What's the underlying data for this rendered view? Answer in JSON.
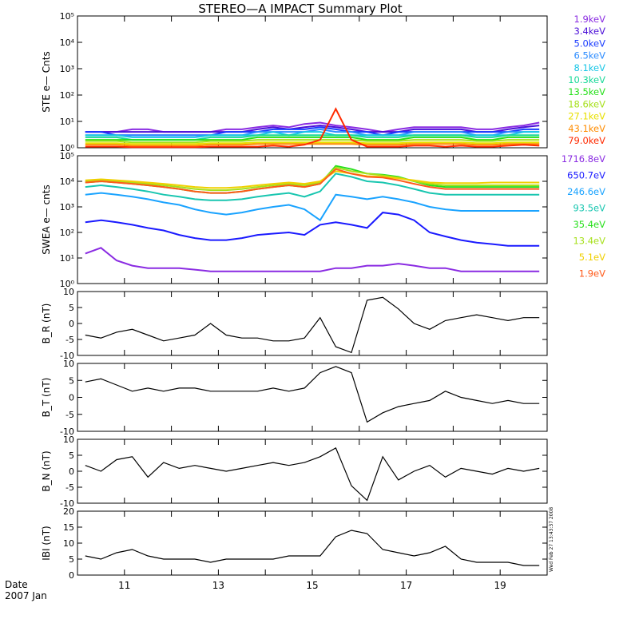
{
  "title": "STEREO—A IMPACT Summary Plot",
  "footer": {
    "date_label": "Date",
    "date_value": "2007 Jan"
  },
  "timestamp": "Wed Feb 27 13:43:37 2008",
  "chart_data": [
    {
      "id": "ste",
      "type": "line",
      "ylabel": "STE e— Cnts",
      "yscale": "log",
      "ylim": [
        1,
        100000
      ],
      "yticks": [
        "10⁰",
        "10¹",
        "10²",
        "10³",
        "10⁴",
        "10⁵"
      ],
      "xlim": [
        10,
        20
      ],
      "x_ticks": [
        "11",
        "13",
        "15",
        "17",
        "19"
      ],
      "series": [
        {
          "name": "1.9keV",
          "color": "#8a2be2",
          "values": [
            4,
            4,
            4,
            5,
            5,
            4,
            4,
            4,
            4,
            5,
            5,
            6,
            7,
            6,
            8,
            9,
            7,
            6,
            5,
            4,
            5,
            6,
            6,
            6,
            6,
            5,
            5,
            6,
            7,
            9
          ]
        },
        {
          "name": "3.4keV",
          "color": "#4b0fd8",
          "values": [
            4,
            4,
            4,
            4,
            4,
            4,
            4,
            4,
            4,
            4,
            4,
            5,
            6,
            5,
            6,
            7,
            6,
            5,
            4,
            4,
            4,
            5,
            5,
            5,
            5,
            4,
            4,
            5,
            6,
            7
          ]
        },
        {
          "name": "5.0keV",
          "color": "#1a3cff",
          "values": [
            4,
            4,
            3,
            3,
            3,
            3,
            3,
            3,
            3,
            4,
            4,
            4,
            5,
            5,
            5,
            6,
            5,
            4,
            4,
            3,
            4,
            4,
            4,
            4,
            4,
            4,
            4,
            4,
            5,
            5
          ]
        },
        {
          "name": "6.5keV",
          "color": "#2c8cff",
          "values": [
            3,
            3,
            3,
            3,
            3,
            3,
            3,
            3,
            3,
            3,
            3,
            4,
            4,
            4,
            4,
            5,
            4,
            4,
            3,
            3,
            3,
            4,
            4,
            4,
            4,
            3,
            3,
            4,
            4,
            4
          ]
        },
        {
          "name": "8.1keV",
          "color": "#19c6e6",
          "values": [
            3,
            3,
            3,
            2.5,
            2.5,
            2.5,
            2.5,
            2.5,
            3,
            3,
            3,
            3,
            4,
            3,
            4,
            4,
            3,
            3,
            3,
            3,
            3,
            3,
            3,
            3,
            3,
            3,
            3,
            3,
            4,
            4
          ]
        },
        {
          "name": "10.3keV",
          "color": "#19d999",
          "values": [
            2.5,
            2.5,
            2.5,
            2,
            2,
            2,
            2,
            2,
            2.5,
            2.5,
            2.5,
            3,
            3,
            3,
            3,
            3,
            3,
            3,
            2.5,
            2.5,
            2.5,
            3,
            3,
            3,
            3,
            2.5,
            2.5,
            3,
            3,
            3
          ]
        },
        {
          "name": "13.5keV",
          "color": "#26e01a",
          "values": [
            2,
            2,
            2,
            2,
            2,
            2,
            2,
            2,
            2,
            2,
            2,
            2.5,
            2.5,
            2.5,
            2.5,
            2.5,
            2.5,
            2.5,
            2,
            2,
            2,
            2.5,
            2.5,
            2.5,
            2.5,
            2,
            2,
            2.5,
            2.5,
            2.5
          ]
        },
        {
          "name": "18.6keV",
          "color": "#a6e01a",
          "values": [
            1.8,
            1.8,
            1.8,
            1.6,
            1.6,
            1.6,
            1.6,
            1.6,
            1.8,
            1.8,
            1.8,
            2,
            2,
            2,
            2,
            2,
            2,
            2,
            1.8,
            1.8,
            1.8,
            2,
            2,
            2,
            2,
            1.8,
            1.8,
            2,
            2,
            2
          ]
        },
        {
          "name": "27.1keV",
          "color": "#e8e000",
          "values": [
            1.5,
            1.5,
            1.5,
            1.4,
            1.4,
            1.4,
            1.4,
            1.4,
            1.5,
            1.5,
            1.5,
            1.6,
            1.6,
            1.6,
            1.6,
            1.6,
            1.6,
            1.6,
            1.5,
            1.5,
            1.5,
            1.6,
            1.6,
            1.6,
            1.6,
            1.5,
            1.5,
            1.6,
            1.6,
            1.6
          ]
        },
        {
          "name": "43.1keV",
          "color": "#ff8c00",
          "values": [
            1.3,
            1.3,
            1.3,
            1.2,
            1.2,
            1.2,
            1.2,
            1.2,
            1.3,
            1.3,
            1.3,
            1.4,
            1.4,
            1.4,
            1.4,
            1.4,
            1.4,
            1.4,
            1.3,
            1.3,
            1.3,
            1.4,
            1.4,
            1.4,
            1.4,
            1.3,
            1.3,
            1.4,
            1.4,
            1.4
          ]
        },
        {
          "name": "79.0keV",
          "color": "#ff2a00",
          "values": [
            1.1,
            1.1,
            1.1,
            1.05,
            1.05,
            1.05,
            1.05,
            1.05,
            1.1,
            1.1,
            1.1,
            1.1,
            1.2,
            1.1,
            1.3,
            2,
            30,
            2,
            1.1,
            1.1,
            1.1,
            1.2,
            1.2,
            1.1,
            1.2,
            1.1,
            1.1,
            1.2,
            1.3,
            1.2
          ]
        }
      ]
    },
    {
      "id": "swea",
      "type": "line",
      "ylabel": "SWEA e— cnts",
      "yscale": "log",
      "ylim": [
        1,
        100000
      ],
      "yticks": [
        "10⁰",
        "10¹",
        "10²",
        "10³",
        "10⁴",
        "10⁵"
      ],
      "xlim": [
        10,
        20
      ],
      "x_ticks": [
        "11",
        "13",
        "15",
        "17",
        "19"
      ],
      "series": [
        {
          "name": "1716.8eV",
          "color": "#8a2be2",
          "values": [
            15,
            25,
            8,
            5,
            4,
            4,
            4,
            3.5,
            3,
            3,
            3,
            3,
            3,
            3,
            3,
            3,
            4,
            4,
            5,
            5,
            6,
            5,
            4,
            4,
            3,
            3,
            3,
            3,
            3,
            3
          ]
        },
        {
          "name": "650.7eV",
          "color": "#1a1aff",
          "values": [
            250,
            300,
            250,
            200,
            150,
            120,
            80,
            60,
            50,
            50,
            60,
            80,
            90,
            100,
            80,
            200,
            250,
            200,
            150,
            600,
            500,
            300,
            100,
            70,
            50,
            40,
            35,
            30,
            30,
            30
          ]
        },
        {
          "name": "246.6eV",
          "color": "#1aa3ff",
          "values": [
            3000,
            3500,
            3000,
            2500,
            2000,
            1500,
            1200,
            800,
            600,
            500,
            600,
            800,
            1000,
            1200,
            800,
            300,
            3000,
            2500,
            2000,
            2500,
            2000,
            1500,
            1000,
            800,
            700,
            700,
            700,
            700,
            700,
            700
          ]
        },
        {
          "name": "93.5eV",
          "color": "#19c6b0",
          "values": [
            6000,
            7000,
            6000,
            5000,
            4000,
            3000,
            2500,
            2000,
            1800,
            1800,
            2000,
            2500,
            3000,
            3500,
            2500,
            4000,
            20000,
            15000,
            10000,
            9000,
            7000,
            5000,
            3500,
            3000,
            3000,
            3000,
            3000,
            3000,
            3000,
            3000
          ]
        },
        {
          "name": "35.4eV",
          "color": "#26e01a",
          "values": [
            9000,
            10000,
            9000,
            8000,
            7000,
            6000,
            5000,
            4000,
            3500,
            3500,
            4000,
            5000,
            6000,
            7000,
            6000,
            8000,
            40000,
            30000,
            20000,
            18000,
            15000,
            10000,
            7000,
            6000,
            6000,
            6000,
            6000,
            6000,
            6000,
            6000
          ]
        },
        {
          "name": "13.4eV",
          "color": "#a6e01a",
          "values": [
            10000,
            11000,
            10000,
            9000,
            8000,
            7000,
            6000,
            5000,
            4500,
            4500,
            5000,
            6000,
            7000,
            8000,
            7000,
            9000,
            35000,
            25000,
            20000,
            17000,
            14000,
            10000,
            8000,
            7000,
            7000,
            7000,
            7000,
            7000,
            7000,
            7000
          ]
        },
        {
          "name": "5.1eV",
          "color": "#f0d000",
          "values": [
            11000,
            12000,
            11000,
            10000,
            9000,
            8000,
            7000,
            6000,
            5500,
            5500,
            6000,
            7000,
            8000,
            9000,
            8000,
            10000,
            25000,
            20000,
            16000,
            15000,
            13000,
            11000,
            9000,
            8500,
            8500,
            8500,
            9000,
            9000,
            9000,
            9000
          ]
        },
        {
          "name": "1.9eV",
          "color": "#ff5a1a",
          "values": [
            9000,
            10000,
            9000,
            8000,
            7000,
            6000,
            5000,
            4000,
            3500,
            3500,
            4000,
            5000,
            6000,
            7000,
            6000,
            8000,
            30000,
            20000,
            15000,
            14000,
            11000,
            8000,
            6000,
            5000,
            5000,
            5000,
            5000,
            5000,
            5000,
            5000
          ]
        }
      ]
    },
    {
      "id": "br",
      "type": "line",
      "ylabel": "B_R (nT)",
      "ylim": [
        -11,
        11
      ],
      "yticks": [
        "-10",
        "-5",
        "0",
        "5",
        "10"
      ],
      "xlim": [
        10,
        20
      ],
      "x_ticks": [
        "11",
        "13",
        "15",
        "17",
        "19"
      ],
      "series": [
        {
          "color": "#000000",
          "values": [
            -4,
            -5,
            -3,
            -2,
            -4,
            -6,
            -5,
            -4,
            0,
            -4,
            -5,
            -5,
            -6,
            -6,
            -5,
            2,
            -8,
            -10,
            8,
            9,
            5,
            0,
            -2,
            1,
            2,
            3,
            2,
            1,
            2,
            2
          ]
        }
      ]
    },
    {
      "id": "bt",
      "type": "line",
      "ylabel": "B_T (nT)",
      "ylim": [
        -11,
        11
      ],
      "yticks": [
        "-10",
        "-5",
        "0",
        "5",
        "10"
      ],
      "xlim": [
        10,
        20
      ],
      "x_ticks": [
        "11",
        "13",
        "15",
        "17",
        "19"
      ],
      "series": [
        {
          "color": "#000000",
          "values": [
            5,
            6,
            4,
            2,
            3,
            2,
            3,
            3,
            2,
            2,
            2,
            2,
            3,
            2,
            3,
            8,
            10,
            8,
            -8,
            -5,
            -3,
            -2,
            -1,
            2,
            0,
            -1,
            -2,
            -1,
            -2,
            -2
          ]
        }
      ]
    },
    {
      "id": "bn",
      "type": "line",
      "ylabel": "B_N (nT)",
      "ylim": [
        -11,
        11
      ],
      "yticks": [
        "-10",
        "-5",
        "0",
        "5",
        "10"
      ],
      "xlim": [
        10,
        20
      ],
      "x_ticks": [
        "11",
        "13",
        "15",
        "17",
        "19"
      ],
      "series": [
        {
          "color": "#000000",
          "values": [
            2,
            0,
            4,
            5,
            -2,
            3,
            1,
            2,
            1,
            0,
            1,
            2,
            3,
            2,
            3,
            5,
            8,
            -5,
            -10,
            5,
            -3,
            0,
            2,
            -2,
            1,
            0,
            -1,
            1,
            0,
            1
          ]
        }
      ]
    },
    {
      "id": "bmag",
      "type": "line",
      "ylabel": "IBI (nT)",
      "ylim": [
        0,
        20
      ],
      "yticks": [
        "0",
        "5",
        "10",
        "15",
        "20"
      ],
      "xlim": [
        10,
        20
      ],
      "x_ticks": [
        "11",
        "13",
        "15",
        "17",
        "19"
      ],
      "series": [
        {
          "color": "#000000",
          "values": [
            6,
            5,
            7,
            8,
            6,
            5,
            5,
            5,
            4,
            5,
            5,
            5,
            5,
            6,
            6,
            6,
            12,
            14,
            13,
            8,
            7,
            6,
            7,
            9,
            5,
            4,
            4,
            4,
            3,
            3
          ]
        }
      ]
    }
  ]
}
